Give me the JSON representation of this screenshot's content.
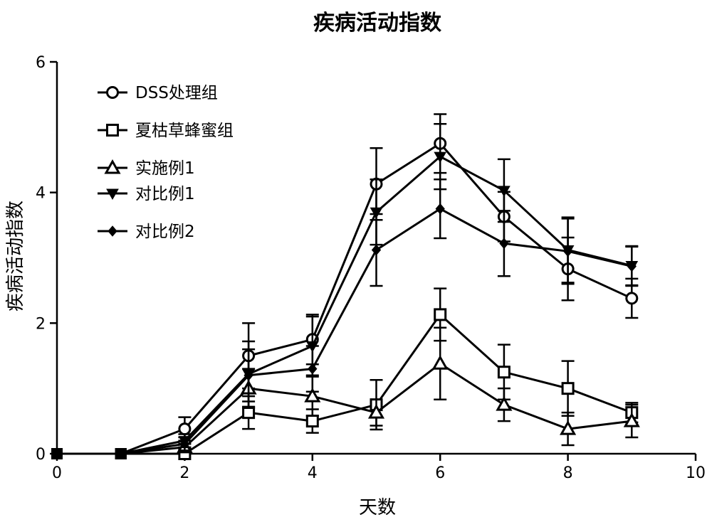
{
  "chart_data": {
    "type": "line",
    "title": "疾病活动指数",
    "xlabel": "天数",
    "ylabel": "疾病活动指数",
    "xlim": [
      0,
      10
    ],
    "ylim": [
      0,
      6
    ],
    "xticks": [
      0,
      2,
      4,
      6,
      8,
      10
    ],
    "yticks": [
      0,
      2,
      4,
      6
    ],
    "grid": false,
    "legend_position": "top-left",
    "series": [
      {
        "name": "DSS处理组",
        "marker": "circle",
        "x": [
          0,
          1,
          2,
          3,
          4,
          5,
          6,
          7,
          8,
          9
        ],
        "y": [
          0,
          0,
          0.38,
          1.5,
          1.75,
          4.13,
          4.75,
          3.63,
          2.83,
          2.38
        ],
        "err": [
          0,
          0,
          0.18,
          0.5,
          0.38,
          0.55,
          0.45,
          0.38,
          0.48,
          0.3
        ]
      },
      {
        "name": "夏枯草蜂蜜组",
        "marker": "square",
        "x": [
          0,
          1,
          2,
          3,
          4,
          5,
          6,
          7,
          8,
          9
        ],
        "y": [
          0,
          0,
          0,
          0.63,
          0.5,
          0.75,
          2.13,
          1.25,
          1.0,
          0.63
        ],
        "err": [
          0,
          0,
          0,
          0.25,
          0.18,
          0.38,
          0.4,
          0.42,
          0.42,
          0.15
        ]
      },
      {
        "name": "实施例1",
        "marker": "triangle-up",
        "x": [
          0,
          1,
          2,
          3,
          4,
          5,
          6,
          7,
          8,
          9
        ],
        "y": [
          0,
          0,
          0.1,
          1.0,
          0.88,
          0.63,
          1.38,
          0.75,
          0.38,
          0.5
        ],
        "err": [
          0,
          0,
          0.05,
          0.3,
          0.3,
          0.2,
          0.55,
          0.25,
          0.25,
          0.25
        ]
      },
      {
        "name": "对比例1",
        "marker": "triangle-down",
        "x": [
          0,
          1,
          2,
          3,
          4,
          5,
          6,
          7,
          8,
          9
        ],
        "y": [
          0,
          0,
          0.2,
          1.22,
          1.65,
          3.7,
          4.55,
          4.03,
          3.12,
          2.88
        ],
        "err": [
          0,
          0,
          0.1,
          0.5,
          0.45,
          0.5,
          0.5,
          0.48,
          0.5,
          0.3
        ]
      },
      {
        "name": "对比例2",
        "marker": "diamond",
        "x": [
          0,
          1,
          2,
          3,
          4,
          5,
          6,
          7,
          8,
          9
        ],
        "y": [
          0,
          0,
          0.15,
          1.2,
          1.3,
          3.12,
          3.75,
          3.22,
          3.1,
          2.87
        ],
        "err": [
          0,
          0,
          0.1,
          0.4,
          0.35,
          0.55,
          0.45,
          0.5,
          0.5,
          0.3
        ]
      }
    ]
  }
}
